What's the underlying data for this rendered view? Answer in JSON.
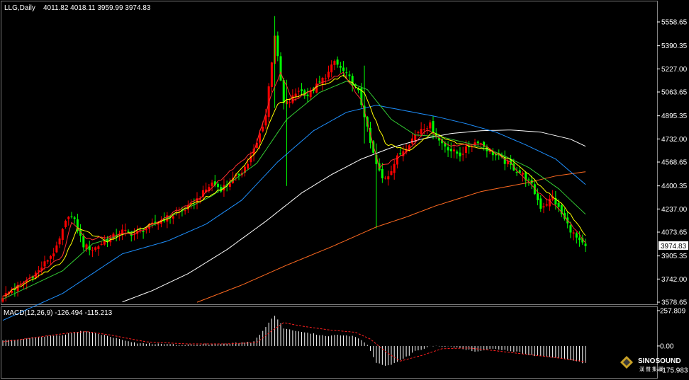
{
  "price_header": {
    "symbol": "LLG,Daily",
    "ohlc": "4011.82 4018.11 3959.99 3974.83"
  },
  "macd_header": "MACD(12,26,9) -126.494 -115.213",
  "current_price_label": "3974.83",
  "logo": {
    "line1": "SINOSOUND",
    "line2": "漢 聲 集 團"
  },
  "colors": {
    "background": "#000000",
    "up_candle": "#ff0000",
    "down_candle": "#00ff00",
    "ma5": "#ff3030",
    "ma10": "#ffff00",
    "ma20": "#33cc33",
    "ma60": "#1e90ff",
    "ma120": "#ffffff",
    "ma250": "#ff6a20",
    "macd_hist": "#ffffff",
    "macd_signal": "#ff2020"
  },
  "chart_data": [
    {
      "type": "candlestick",
      "title": "LLG,Daily",
      "y_ticks": [
        5558.65,
        5390.35,
        5227.0,
        5063.65,
        4895.35,
        4732.0,
        4568.65,
        4400.35,
        4237.0,
        4073.65,
        3905.35,
        3742.0,
        3578.65
      ],
      "ylim": [
        3578.65,
        5640
      ],
      "last_value": 3974.83,
      "price_path": [
        [
          0,
          3620
        ],
        [
          6,
          3700
        ],
        [
          12,
          3800
        ],
        [
          18,
          3960
        ],
        [
          22,
          4200
        ],
        [
          24,
          4150
        ],
        [
          27,
          3980
        ],
        [
          30,
          3950
        ],
        [
          35,
          4020
        ],
        [
          40,
          4080
        ],
        [
          44,
          4060
        ],
        [
          48,
          4100
        ],
        [
          53,
          4160
        ],
        [
          58,
          4200
        ],
        [
          63,
          4260
        ],
        [
          67,
          4350
        ],
        [
          70,
          4420
        ],
        [
          73,
          4380
        ],
        [
          78,
          4460
        ],
        [
          82,
          4560
        ],
        [
          85,
          4700
        ],
        [
          88,
          4900
        ],
        [
          89,
          5100
        ],
        [
          91,
          5470
        ],
        [
          92,
          5300
        ],
        [
          94,
          4980
        ],
        [
          96,
          5000
        ],
        [
          99,
          5080
        ],
        [
          102,
          5040
        ],
        [
          106,
          5130
        ],
        [
          109,
          5200
        ],
        [
          111,
          5280
        ],
        [
          113,
          5230
        ],
        [
          116,
          5160
        ],
        [
          119,
          5060
        ],
        [
          121,
          4900
        ],
        [
          123,
          4700
        ],
        [
          125,
          4550
        ],
        [
          127,
          4450
        ],
        [
          129,
          4480
        ],
        [
          132,
          4600
        ],
        [
          135,
          4680
        ],
        [
          138,
          4760
        ],
        [
          140,
          4810
        ],
        [
          143,
          4830
        ],
        [
          146,
          4720
        ],
        [
          150,
          4650
        ],
        [
          153,
          4620
        ],
        [
          156,
          4680
        ],
        [
          159,
          4720
        ],
        [
          162,
          4660
        ],
        [
          166,
          4600
        ],
        [
          170,
          4540
        ],
        [
          174,
          4480
        ],
        [
          177,
          4400
        ],
        [
          180,
          4250
        ],
        [
          182,
          4280
        ],
        [
          184,
          4320
        ],
        [
          187,
          4200
        ],
        [
          190,
          4090
        ],
        [
          193,
          4000
        ],
        [
          195,
          3974.83
        ]
      ],
      "ma_anchors": {
        "ma5": [
          [
            0,
            3620
          ],
          [
            20,
            3900
          ],
          [
            23,
            4150
          ],
          [
            28,
            4020
          ],
          [
            45,
            4070
          ],
          [
            65,
            4300
          ],
          [
            84,
            4650
          ],
          [
            90,
            5050
          ],
          [
            93,
            5200
          ],
          [
            97,
            5000
          ],
          [
            108,
            5140
          ],
          [
            114,
            5200
          ],
          [
            120,
            5000
          ],
          [
            126,
            4530
          ],
          [
            134,
            4620
          ],
          [
            142,
            4800
          ],
          [
            150,
            4680
          ],
          [
            160,
            4700
          ],
          [
            170,
            4560
          ],
          [
            178,
            4380
          ],
          [
            185,
            4260
          ],
          [
            195,
            4000
          ]
        ],
        "ma10": [
          [
            0,
            3620
          ],
          [
            20,
            3860
          ],
          [
            25,
            4100
          ],
          [
            35,
            4010
          ],
          [
            55,
            4170
          ],
          [
            75,
            4400
          ],
          [
            86,
            4680
          ],
          [
            92,
            4980
          ],
          [
            97,
            5020
          ],
          [
            108,
            5120
          ],
          [
            114,
            5180
          ],
          [
            121,
            5050
          ],
          [
            128,
            4700
          ],
          [
            136,
            4650
          ],
          [
            144,
            4780
          ],
          [
            152,
            4700
          ],
          [
            162,
            4660
          ],
          [
            172,
            4560
          ],
          [
            180,
            4400
          ],
          [
            188,
            4250
          ],
          [
            195,
            4050
          ]
        ],
        "ma20": [
          [
            0,
            3600
          ],
          [
            20,
            3800
          ],
          [
            30,
            3990
          ],
          [
            50,
            4120
          ],
          [
            70,
            4330
          ],
          [
            85,
            4560
          ],
          [
            95,
            4870
          ],
          [
            106,
            5060
          ],
          [
            115,
            5140
          ],
          [
            122,
            5080
          ],
          [
            130,
            4870
          ],
          [
            138,
            4760
          ],
          [
            146,
            4750
          ],
          [
            156,
            4700
          ],
          [
            166,
            4630
          ],
          [
            176,
            4530
          ],
          [
            186,
            4380
          ],
          [
            195,
            4200
          ]
        ],
        "ma60": [
          [
            0,
            3450
          ],
          [
            20,
            3640
          ],
          [
            40,
            3920
          ],
          [
            55,
            4010
          ],
          [
            68,
            4130
          ],
          [
            80,
            4300
          ],
          [
            92,
            4570
          ],
          [
            104,
            4790
          ],
          [
            115,
            4920
          ],
          [
            125,
            4970
          ],
          [
            135,
            4930
          ],
          [
            145,
            4890
          ],
          [
            155,
            4840
          ],
          [
            165,
            4780
          ],
          [
            175,
            4690
          ],
          [
            185,
            4590
          ],
          [
            195,
            4410
          ]
        ],
        "ma120": [
          [
            40,
            3580
          ],
          [
            50,
            3660
          ],
          [
            62,
            3780
          ],
          [
            75,
            3950
          ],
          [
            88,
            4150
          ],
          [
            100,
            4350
          ],
          [
            110,
            4480
          ],
          [
            120,
            4590
          ],
          [
            130,
            4670
          ],
          [
            140,
            4730
          ],
          [
            150,
            4770
          ],
          [
            160,
            4790
          ],
          [
            170,
            4795
          ],
          [
            180,
            4780
          ],
          [
            190,
            4730
          ],
          [
            195,
            4680
          ]
        ],
        "ma250": [
          [
            65,
            3578
          ],
          [
            80,
            3700
          ],
          [
            95,
            3840
          ],
          [
            110,
            3970
          ],
          [
            125,
            4110
          ],
          [
            135,
            4180
          ],
          [
            145,
            4260
          ],
          [
            160,
            4360
          ],
          [
            175,
            4420
          ],
          [
            185,
            4470
          ],
          [
            195,
            4500
          ]
        ]
      }
    },
    {
      "type": "bar",
      "title": "MACD(12,26,9)",
      "y_ticks": [
        257.809,
        0.0,
        -175.983
      ],
      "ylim": [
        -175.983,
        257.809
      ],
      "last_values": {
        "macd": -126.494,
        "signal": -115.213
      },
      "series": [
        {
          "name": "MACD",
          "anchors": [
            [
              0,
              40
            ],
            [
              20,
              80
            ],
            [
              26,
              110
            ],
            [
              32,
              90
            ],
            [
              45,
              20
            ],
            [
              60,
              10
            ],
            [
              72,
              15
            ],
            [
              84,
              30
            ],
            [
              88,
              140
            ],
            [
              91,
              225
            ],
            [
              94,
              130
            ],
            [
              100,
              100
            ],
            [
              108,
              75
            ],
            [
              114,
              80
            ],
            [
              118,
              70
            ],
            [
              122,
              10
            ],
            [
              125,
              -120
            ],
            [
              128,
              -145
            ],
            [
              132,
              -120
            ],
            [
              138,
              -40
            ],
            [
              143,
              0
            ],
            [
              150,
              -5
            ],
            [
              158,
              -40
            ],
            [
              163,
              -20
            ],
            [
              170,
              -35
            ],
            [
              178,
              -70
            ],
            [
              186,
              -85
            ],
            [
              195,
              -126
            ]
          ]
        },
        {
          "name": "Signal",
          "anchors": [
            [
              0,
              30
            ],
            [
              22,
              95
            ],
            [
              28,
              105
            ],
            [
              36,
              80
            ],
            [
              48,
              30
            ],
            [
              62,
              15
            ],
            [
              75,
              15
            ],
            [
              85,
              25
            ],
            [
              90,
              110
            ],
            [
              94,
              170
            ],
            [
              100,
              145
            ],
            [
              110,
              115
            ],
            [
              118,
              100
            ],
            [
              123,
              50
            ],
            [
              128,
              -40
            ],
            [
              133,
              -110
            ],
            [
              140,
              -70
            ],
            [
              147,
              -20
            ],
            [
              156,
              -15
            ],
            [
              165,
              -35
            ],
            [
              175,
              -60
            ],
            [
              185,
              -85
            ],
            [
              195,
              -115
            ]
          ]
        }
      ]
    }
  ]
}
